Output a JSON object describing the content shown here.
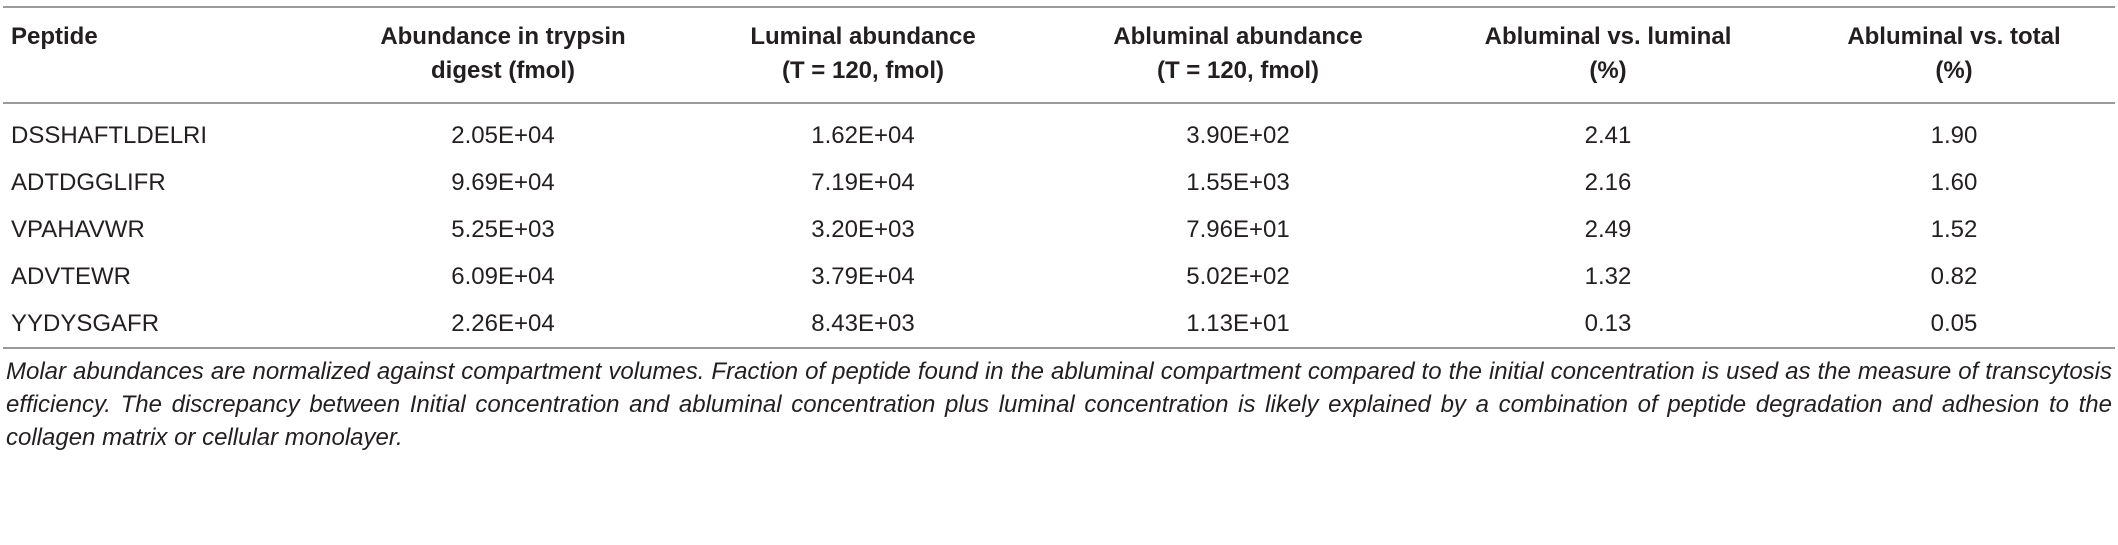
{
  "table": {
    "headers": [
      "Peptide",
      "Abundance in trypsin digest (fmol)",
      "Luminal abundance (T = 120, fmol)",
      "Abluminal abundance (T = 120, fmol)",
      "Abluminal vs. luminal (%)",
      "Abluminal vs. total (%)"
    ],
    "rows": [
      [
        "DSSHAFTLDELRI",
        "2.05E+04",
        "1.62E+04",
        "3.90E+02",
        "2.41",
        "1.90"
      ],
      [
        "ADTDGGLIFR",
        "9.69E+04",
        "7.19E+04",
        "1.55E+03",
        "2.16",
        "1.60"
      ],
      [
        "VPAHAVWR",
        "5.25E+03",
        "3.20E+03",
        "7.96E+01",
        "2.49",
        "1.52"
      ],
      [
        "ADVTEWR",
        "6.09E+04",
        "3.79E+04",
        "5.02E+02",
        "1.32",
        "0.82"
      ],
      [
        "YYDYSGAFR",
        "2.26E+04",
        "8.43E+03",
        "1.13E+01",
        "0.13",
        "0.05"
      ]
    ],
    "caption": "Molar abundances are normalized against compartment volumes. Fraction of peptide found in the abluminal compartment compared to the initial concentration is used as the measure of transcytosis efficiency. The discrepancy between Initial concentration and abluminal concentration plus luminal concentration is likely explained by a combination of peptide degradation and adhesion to the collagen matrix or cellular monolayer."
  }
}
